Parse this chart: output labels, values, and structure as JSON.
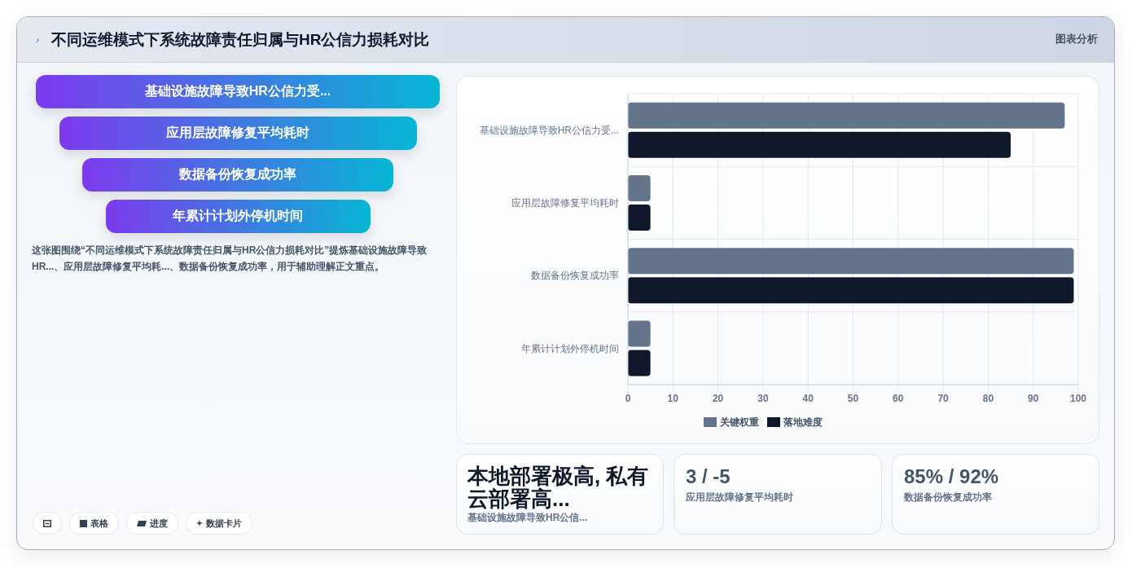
{
  "chart_data": [
    {
      "type": "other",
      "title": "不同运维模式下系统故障责任归属与HR公信力损耗对比",
      "categories": [
        "基础设施故障导致HR公信力受...",
        "应用层故障修复平均耗时",
        "数据备份恢复成功率",
        "年累计计划外停机时间"
      ],
      "annotations": [
        "这张图围绕“不同运维模式下系统故障责任归属与HR公信力损耗对比”提炼基础设施故障导致HR...、应用层故障修复平均耗...、数据备份恢复成功率，用于辅助理解正文重点。",
        "表格",
        "进度",
        "数据卡片"
      ]
    },
    {
      "type": "bar",
      "annotations": [
        "图表分析"
      ],
      "orientation": "horizontal",
      "categories": [
        "基础设施故障导致HR公信力受...",
        "应用层故障修复平均耗时",
        "数据备份恢复成功率",
        "年累计计划外停机时间"
      ],
      "series": [
        {
          "name": "关键权重",
          "color": "#64748b",
          "values": [
            97,
            5,
            99,
            5
          ]
        },
        {
          "name": "落地难度",
          "color": "#0f172a",
          "values": [
            85,
            5,
            99,
            5
          ]
        }
      ],
      "xlim": [
        0,
        100
      ],
      "xticks": [
        0,
        10,
        20,
        30,
        40,
        50,
        60,
        70,
        80,
        90,
        100
      ],
      "grid": true,
      "legend": "bottom"
    },
    {
      "type": "other",
      "title": "本地部署极高, 私有云部署高...",
      "subtitle": "基础设施故障导致HR公信..."
    },
    {
      "type": "other",
      "title": "3 / -5",
      "subtitle": "应用层故障修复平均耗时"
    },
    {
      "type": "other",
      "title": "85% / 92%",
      "subtitle": "数据备份恢复成功率"
    }
  ]
}
